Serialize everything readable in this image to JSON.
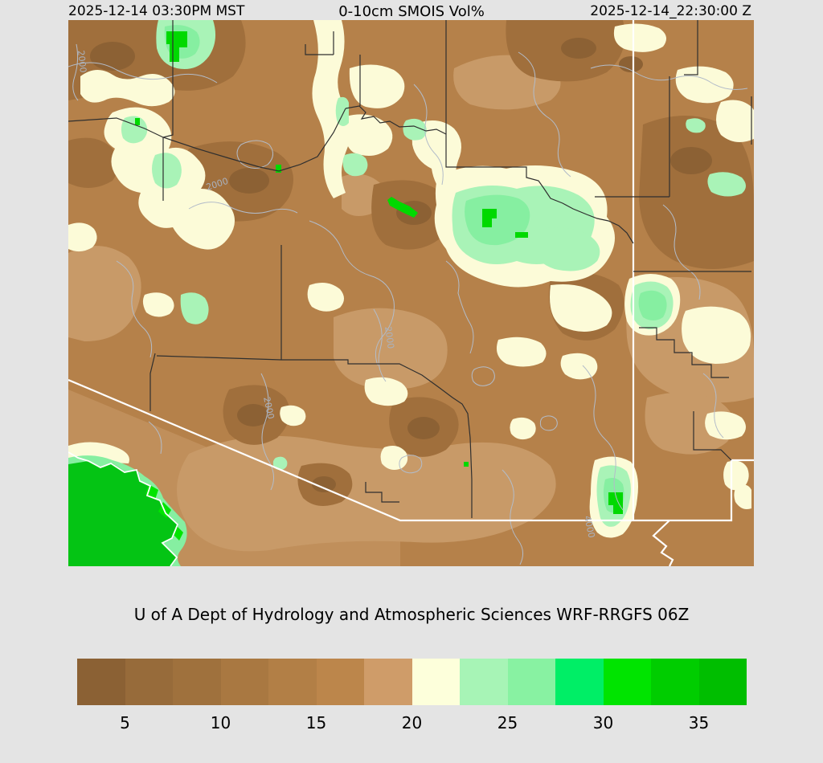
{
  "page": {
    "background": "#e4e4e4"
  },
  "header": {
    "local_time": "2025-12-14 03:30PM MST",
    "title": "0-10cm SMOIS Vol%",
    "utc_time": "2025-12-14_22:30:00 Z"
  },
  "caption": "U of A Dept of Hydrology and Atmospheric Sciences WRF-RRGFS 06Z",
  "colorbar": {
    "units": "Vol%",
    "tick_labels": [
      "5",
      "10",
      "15",
      "20",
      "25",
      "30",
      "35"
    ],
    "segments": [
      {
        "range": "2.5-5",
        "color": "#8b6134"
      },
      {
        "range": "5-7.5",
        "color": "#976b3a"
      },
      {
        "range": "7.5-10",
        "color": "#9f713d"
      },
      {
        "range": "10-12.5",
        "color": "#a97841"
      },
      {
        "range": "12.5-15",
        "color": "#b27f46"
      },
      {
        "range": "15-17.5",
        "color": "#bc864b"
      },
      {
        "range": "17.5-20",
        "color": "#cf9c69"
      },
      {
        "range": "20-22.5",
        "color": "#fdffdb"
      },
      {
        "range": "22.5-25",
        "color": "#a7f4b6"
      },
      {
        "range": "25-27.5",
        "color": "#88f2a2"
      },
      {
        "range": "27.5-30",
        "color": "#00ee66"
      },
      {
        "range": "30-32.5",
        "color": "#00e400"
      },
      {
        "range": "32.5-35",
        "color": "#00cd00"
      },
      {
        "range": "35-37.5",
        "color": "#00be00"
      }
    ]
  },
  "map": {
    "contour_labels": [
      "2000",
      "2000",
      "2000",
      "2000",
      "4000"
    ],
    "colors": {
      "base": "#b5814a",
      "tan": "#c89a68",
      "brown_dark": "#a06f3c",
      "brown_darkest": "#8c6134",
      "cream": "#fcfbd8",
      "mint": "#a9f3b7",
      "mint_bright": "#86efa1",
      "green_core": "#00d900",
      "green_field": "#04c414",
      "green_field_bright": "#00e400",
      "contour": "#b3bcc9",
      "contour_label": "#a9b2bf",
      "county_line": "#2f2f2f",
      "state_border": "#ffffff"
    }
  }
}
